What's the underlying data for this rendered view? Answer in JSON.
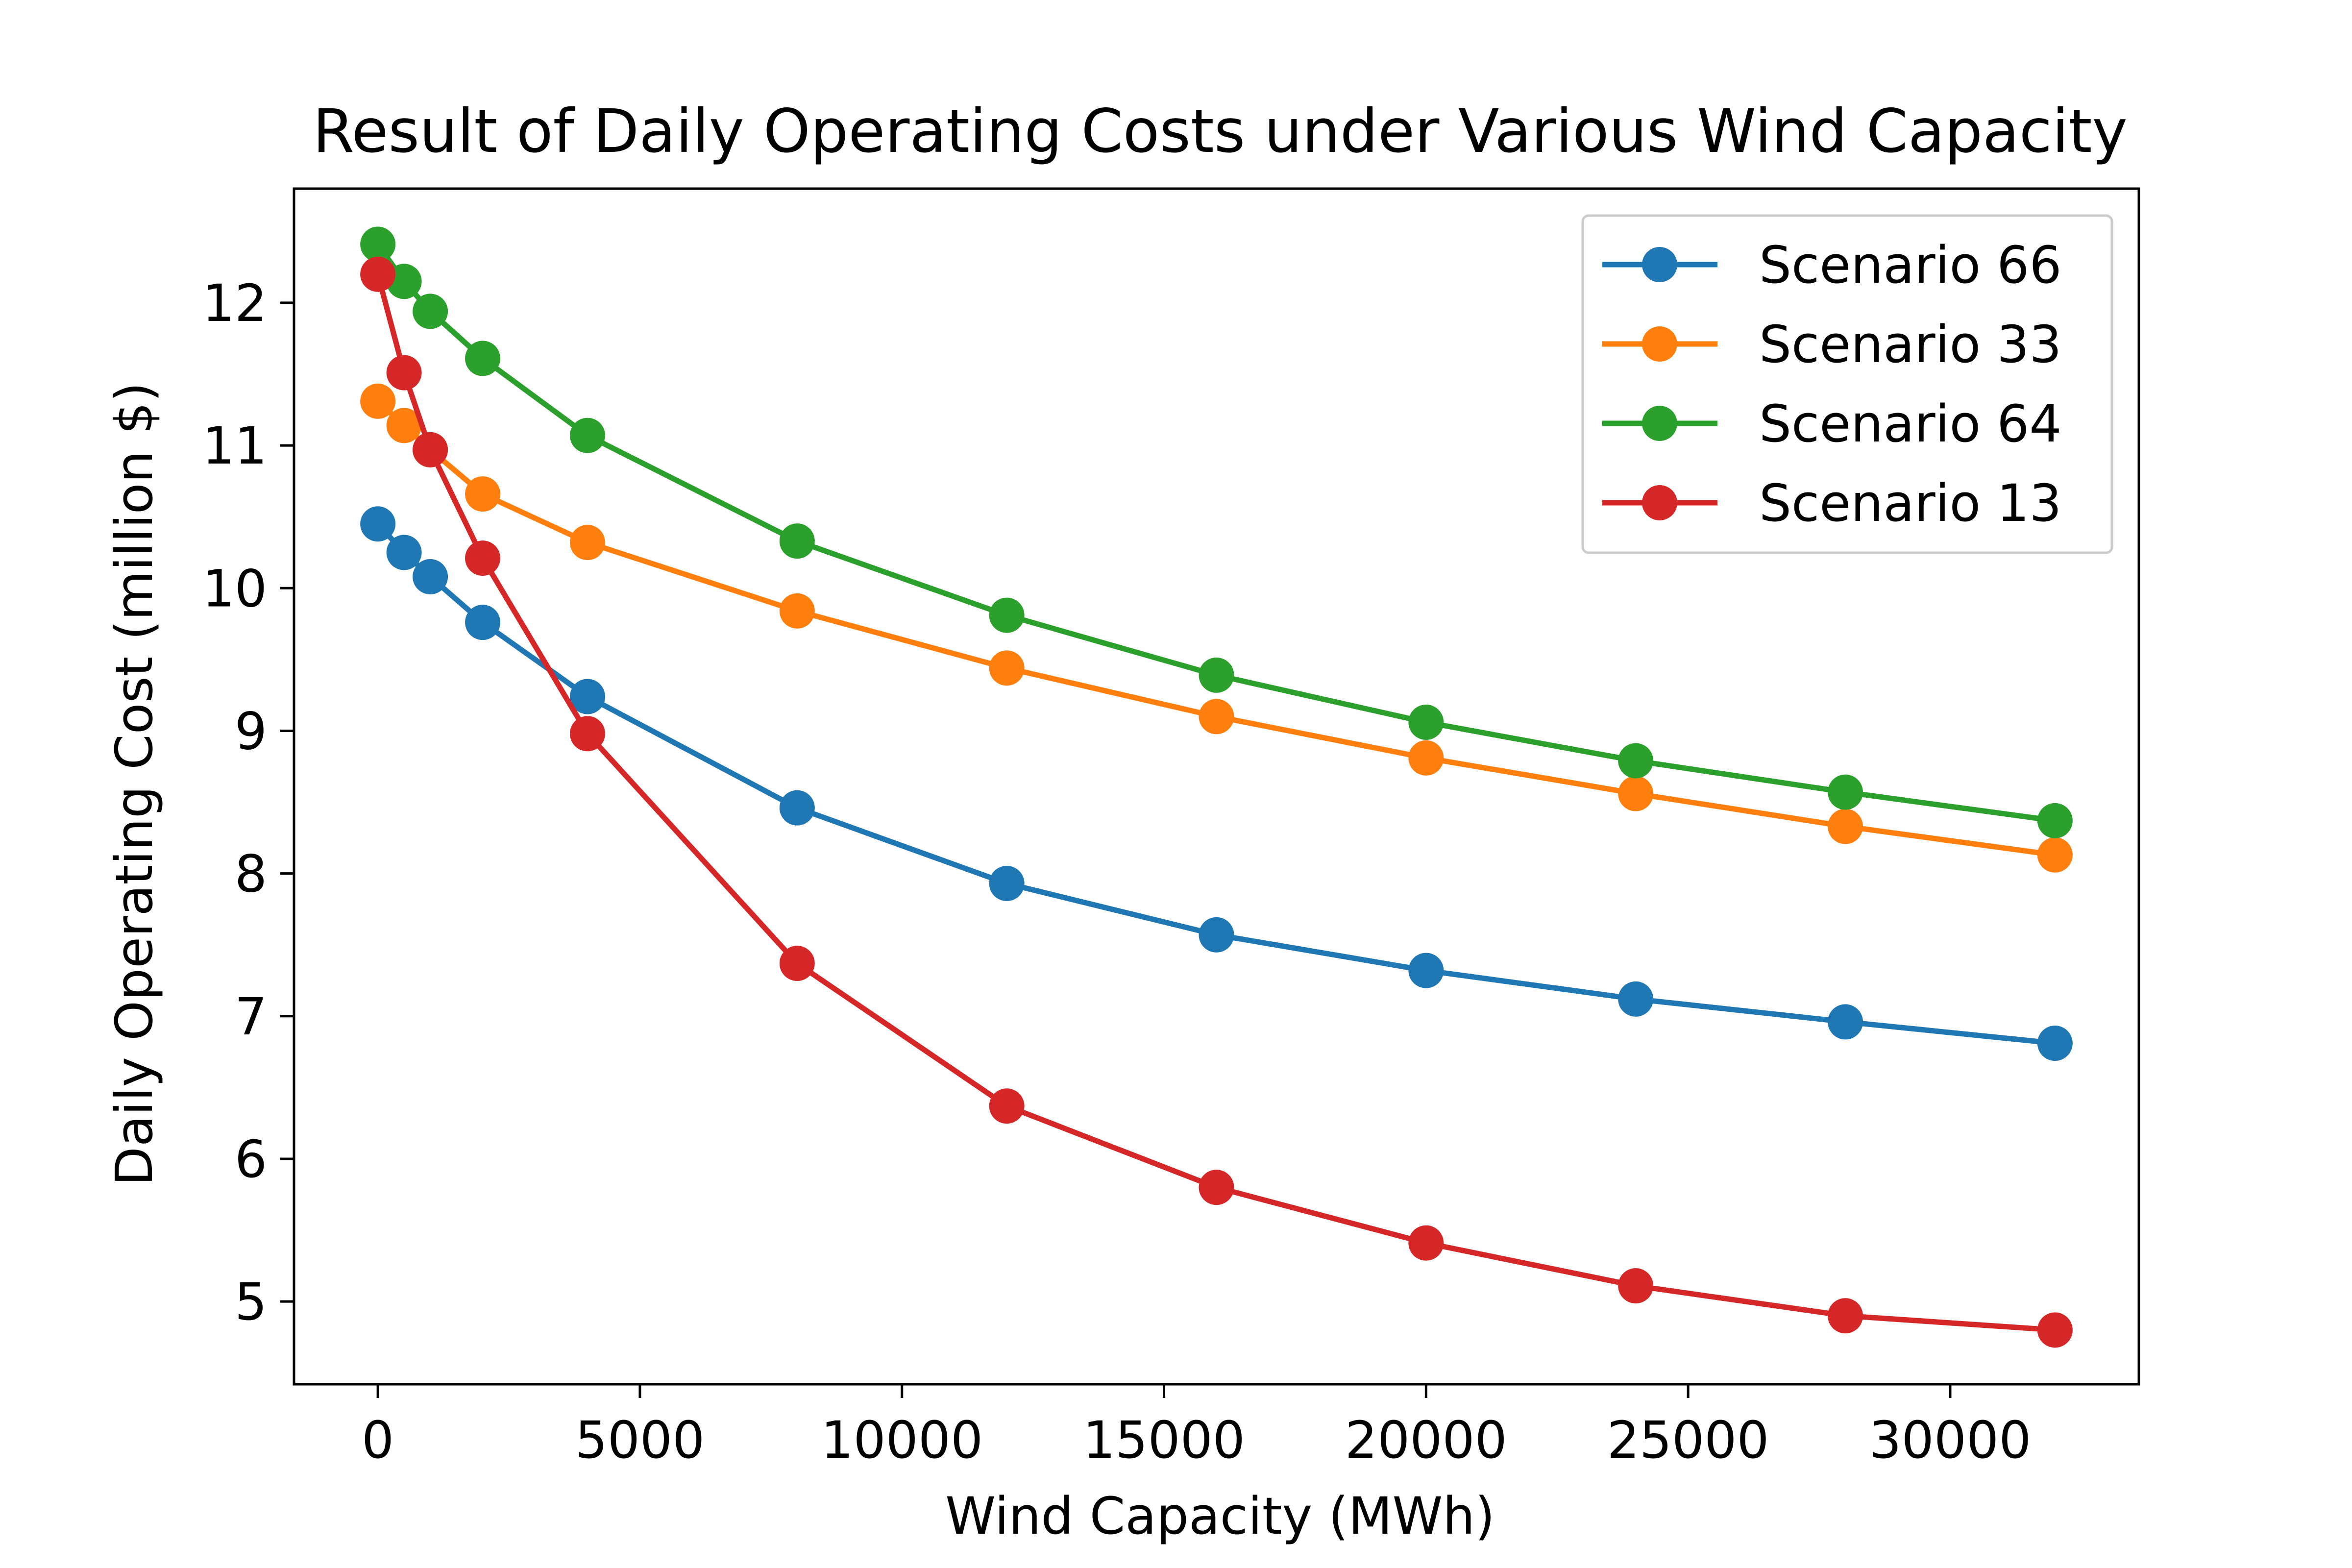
{
  "chart_data": {
    "type": "line",
    "title": "Result of Daily Operating Costs under Various Wind Capacity",
    "xlabel": "Wind Capacity (MWh)",
    "ylabel": "Daily Operating Cost (million $)",
    "x": [
      0,
      500,
      1000,
      2000,
      4000,
      8000,
      12000,
      16000,
      20000,
      24000,
      28000,
      32000
    ],
    "xlim": [
      -1600,
      33600
    ],
    "ylim": [
      4.42,
      12.8
    ],
    "xticks": [
      0,
      5000,
      10000,
      15000,
      20000,
      25000,
      30000
    ],
    "yticks": [
      5,
      6,
      7,
      8,
      9,
      10,
      11,
      12
    ],
    "grid": false,
    "legend_position": "top-right",
    "series": [
      {
        "name": "Scenario 66",
        "color": "#1f77b4",
        "values": [
          10.45,
          10.25,
          10.08,
          9.76,
          9.24,
          8.46,
          7.93,
          7.57,
          7.32,
          7.12,
          6.96,
          6.81
        ]
      },
      {
        "name": "Scenario 33",
        "color": "#ff7f0e",
        "values": [
          11.31,
          11.14,
          10.97,
          10.66,
          10.32,
          9.84,
          9.44,
          9.1,
          8.81,
          8.56,
          8.33,
          8.13
        ]
      },
      {
        "name": "Scenario 64",
        "color": "#2ca02c",
        "values": [
          12.41,
          12.15,
          11.94,
          11.61,
          11.07,
          10.33,
          9.81,
          9.39,
          9.06,
          8.79,
          8.57,
          8.37
        ]
      },
      {
        "name": "Scenario 13",
        "color": "#d62728",
        "values": [
          12.2,
          11.51,
          10.97,
          10.21,
          8.98,
          7.37,
          6.37,
          5.8,
          5.41,
          5.11,
          4.9,
          4.8
        ]
      }
    ]
  }
}
